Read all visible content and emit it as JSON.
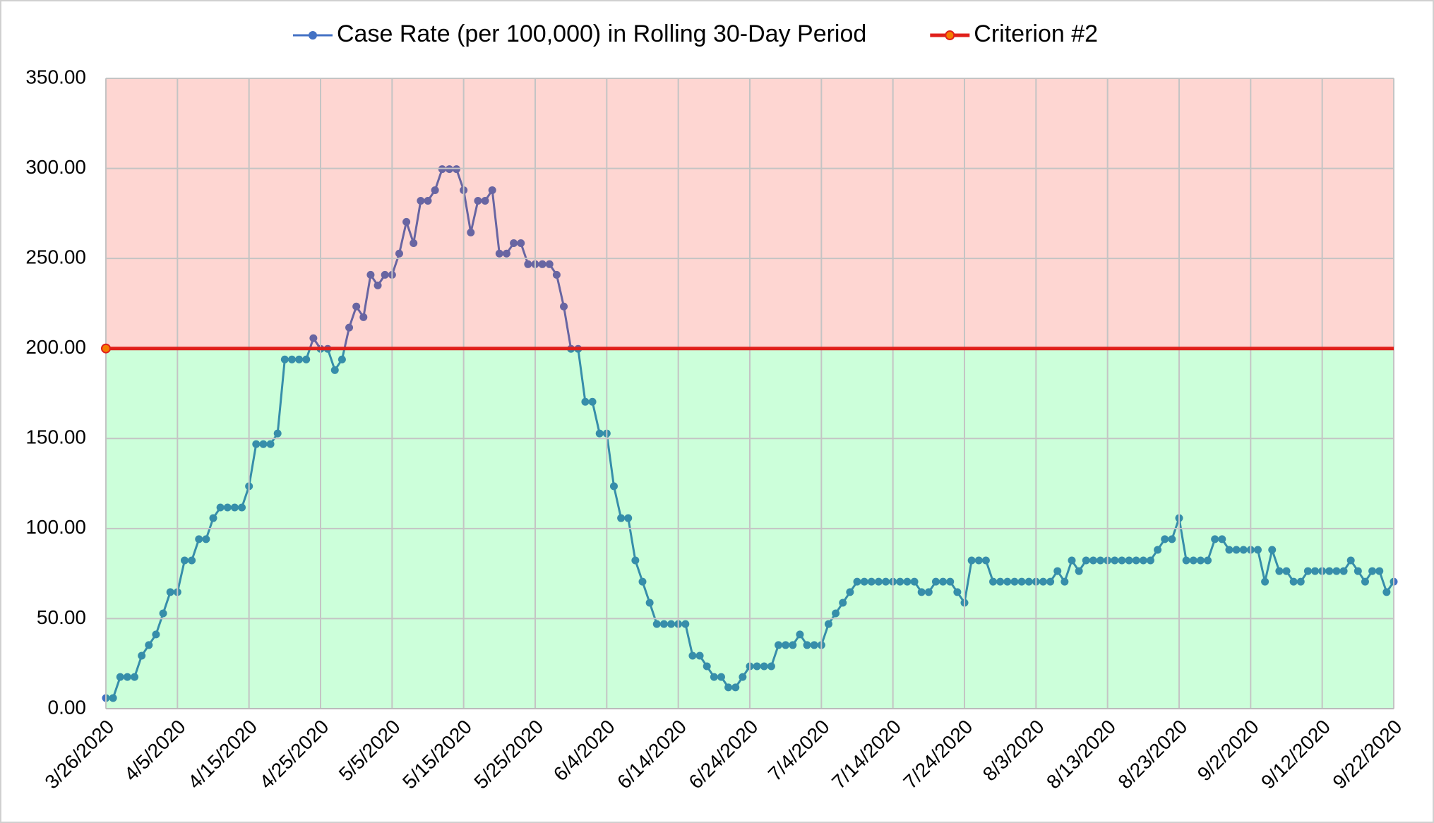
{
  "chart_data": {
    "type": "line",
    "legend": "top",
    "grid": true,
    "categories": [
      "3/26/2020",
      null,
      null,
      null,
      null,
      null,
      null,
      null,
      null,
      null,
      "4/5/2020",
      null,
      null,
      null,
      null,
      null,
      null,
      null,
      null,
      null,
      "4/15/2020",
      null,
      null,
      null,
      null,
      null,
      null,
      null,
      null,
      null,
      "4/25/2020",
      null,
      null,
      null,
      null,
      null,
      null,
      null,
      null,
      null,
      "5/5/2020",
      null,
      null,
      null,
      null,
      null,
      null,
      null,
      null,
      null,
      "5/15/2020",
      null,
      null,
      null,
      null,
      null,
      null,
      null,
      null,
      null,
      "5/25/2020",
      null,
      null,
      null,
      null,
      null,
      null,
      null,
      null,
      null,
      "6/4/2020",
      null,
      null,
      null,
      null,
      null,
      null,
      null,
      null,
      null,
      "6/14/2020",
      null,
      null,
      null,
      null,
      null,
      null,
      null,
      null,
      null,
      "6/24/2020",
      null,
      null,
      null,
      null,
      null,
      null,
      null,
      null,
      null,
      "7/4/2020",
      null,
      null,
      null,
      null,
      null,
      null,
      null,
      null,
      null,
      "7/14/2020",
      null,
      null,
      null,
      null,
      null,
      null,
      null,
      null,
      null,
      "7/24/2020",
      null,
      null,
      null,
      null,
      null,
      null,
      null,
      null,
      null,
      "8/3/2020",
      null,
      null,
      null,
      null,
      null,
      null,
      null,
      null,
      null,
      "8/13/2020",
      null,
      null,
      null,
      null,
      null,
      null,
      null,
      null,
      null,
      "8/23/2020",
      null,
      null,
      null,
      null,
      null,
      null,
      null,
      null,
      null,
      "9/2/2020",
      null,
      null,
      null,
      null,
      null,
      null,
      null,
      null,
      null,
      "9/12/2020",
      null,
      null,
      null,
      null,
      null,
      null,
      null,
      null,
      null,
      "9/22/2020"
    ],
    "series": [
      {
        "name": "Case Rate (per 100,000) in Rolling 30-Day Period",
        "color": "#4472c4",
        "values": [
          5.9,
          5.9,
          17.6,
          17.6,
          17.6,
          29.4,
          35.3,
          41.2,
          52.9,
          64.7,
          64.7,
          82.3,
          82.3,
          94.1,
          94.1,
          105.8,
          111.7,
          111.7,
          111.7,
          111.7,
          123.5,
          146.9,
          146.9,
          146.9,
          152.8,
          193.9,
          193.9,
          193.9,
          193.9,
          205.7,
          199.8,
          199.8,
          188,
          193.9,
          211.6,
          223.3,
          217.4,
          240.9,
          235,
          240.9,
          240.9,
          252.7,
          270.3,
          258.5,
          282,
          282,
          287.9,
          299.6,
          299.6,
          299.6,
          287.9,
          264.4,
          282,
          282,
          287.9,
          252.7,
          252.7,
          258.5,
          258.5,
          246.8,
          246.8,
          246.8,
          246.8,
          240.9,
          223.3,
          199.8,
          199.8,
          170.4,
          170.4,
          152.8,
          152.8,
          123.5,
          105.8,
          105.8,
          82.3,
          70.5,
          58.8,
          47,
          47,
          47,
          47,
          47,
          29.4,
          29.4,
          23.5,
          17.6,
          17.6,
          11.8,
          11.8,
          17.6,
          23.5,
          23.5,
          23.5,
          23.5,
          35.3,
          35.3,
          35.3,
          41.2,
          35.3,
          35.3,
          35.3,
          47,
          52.9,
          58.8,
          64.7,
          70.5,
          70.5,
          70.5,
          70.5,
          70.5,
          70.5,
          70.5,
          70.5,
          70.5,
          64.7,
          64.7,
          70.5,
          70.5,
          70.5,
          64.7,
          58.8,
          82.3,
          82.3,
          82.3,
          70.5,
          70.5,
          70.5,
          70.5,
          70.5,
          70.5,
          70.5,
          70.5,
          70.5,
          76.4,
          70.5,
          82.3,
          76.4,
          82.3,
          82.3,
          82.3,
          82.3,
          82.3,
          82.3,
          82.3,
          82.3,
          82.3,
          82.3,
          88.2,
          94.1,
          94.1,
          105.8,
          82.3,
          82.3,
          82.3,
          82.3,
          94.1,
          94.1,
          88.2,
          88.2,
          88.2,
          88.2,
          88.2,
          70.5,
          88.2,
          76.4,
          76.4,
          70.5,
          70.5,
          76.4,
          76.4,
          76.4,
          76.4,
          76.4,
          76.4,
          82.3,
          76.4,
          70.5,
          76.4,
          76.4,
          64.7,
          70.5
        ]
      },
      {
        "name": "Criterion #2",
        "color": "#e0201b",
        "values": [
          200,
          200,
          200,
          200,
          200,
          200,
          200,
          200,
          200,
          200,
          200,
          200,
          200,
          200,
          200,
          200,
          200,
          200,
          200,
          200,
          200,
          200,
          200,
          200,
          200,
          200,
          200,
          200,
          200,
          200,
          200,
          200,
          200,
          200,
          200,
          200,
          200,
          200,
          200,
          200,
          200,
          200,
          200,
          200,
          200,
          200,
          200,
          200,
          200,
          200,
          200,
          200,
          200,
          200,
          200,
          200,
          200,
          200,
          200,
          200,
          200,
          200,
          200,
          200,
          200,
          200,
          200,
          200,
          200,
          200,
          200,
          200,
          200,
          200,
          200,
          200,
          200,
          200,
          200,
          200,
          200,
          200,
          200,
          200,
          200,
          200,
          200,
          200,
          200,
          200,
          200,
          200,
          200,
          200,
          200,
          200,
          200,
          200,
          200,
          200,
          200,
          200,
          200,
          200,
          200,
          200,
          200,
          200,
          200,
          200,
          200,
          200,
          200,
          200,
          200,
          200,
          200,
          200,
          200,
          200,
          200,
          200,
          200,
          200,
          200,
          200,
          200,
          200,
          200,
          200,
          200,
          200,
          200,
          200,
          200,
          200,
          200,
          200,
          200,
          200,
          200,
          200,
          200,
          200,
          200,
          200,
          200,
          200,
          200,
          200,
          200,
          200,
          200,
          200,
          200,
          200,
          200,
          200,
          200,
          200,
          200,
          200,
          200,
          200,
          200,
          200,
          200,
          200,
          200,
          200,
          200,
          200,
          200,
          200,
          200,
          200,
          200,
          200,
          200,
          200,
          200
        ]
      }
    ],
    "ylim": [
      0,
      350
    ],
    "yticks": [
      {
        "value": 0,
        "label": "0.00"
      },
      {
        "value": 50,
        "label": "50.00"
      },
      {
        "value": 100,
        "label": "100.00"
      },
      {
        "value": 150,
        "label": "150.00"
      },
      {
        "value": 200,
        "label": "200.00"
      },
      {
        "value": 250,
        "label": "250.00"
      },
      {
        "value": 300,
        "label": "300.00"
      },
      {
        "value": 350,
        "label": "350.00"
      }
    ]
  }
}
